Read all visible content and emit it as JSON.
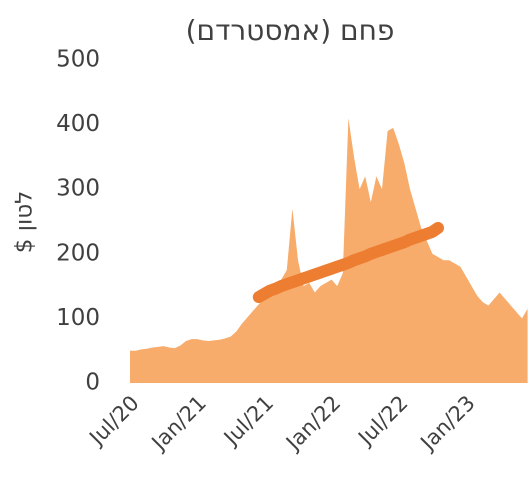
{
  "chart_data": {
    "type": "area",
    "title": "פחם (אמסטרדם)",
    "ylabel": "$ לטון",
    "categories": [
      "Jul/20",
      null,
      null,
      null,
      null,
      null,
      null,
      null,
      null,
      null,
      null,
      null,
      "Jan/21",
      null,
      null,
      null,
      null,
      null,
      null,
      null,
      null,
      null,
      null,
      null,
      "Jul/21",
      null,
      null,
      null,
      null,
      null,
      null,
      null,
      null,
      null,
      null,
      null,
      "Jan/22",
      null,
      null,
      null,
      null,
      null,
      null,
      null,
      null,
      null,
      null,
      null,
      "Jul/22",
      null,
      null,
      null,
      null,
      null,
      null,
      null,
      null,
      null,
      null,
      null,
      "Jan/23",
      null,
      null,
      null,
      null,
      null,
      null,
      null,
      null,
      null,
      null,
      null
    ],
    "series": [
      {
        "color": "#f7ac6c",
        "kind": "area",
        "values": [
          50,
          50,
          52,
          53,
          55,
          56,
          57,
          55,
          54,
          58,
          65,
          68,
          68,
          66,
          65,
          66,
          67,
          69,
          72,
          80,
          92,
          102,
          112,
          122,
          130,
          140,
          150,
          160,
          175,
          270,
          190,
          150,
          155,
          140,
          150,
          155,
          160,
          150,
          170,
          410,
          350,
          300,
          320,
          280,
          320,
          300,
          390,
          395,
          370,
          340,
          300,
          270,
          240,
          220,
          200,
          195,
          190,
          190,
          185,
          180,
          165,
          150,
          135,
          125,
          120,
          130,
          140,
          130,
          120,
          110,
          100,
          115
        ]
      },
      {
        "color": "#ed7d31",
        "kind": "line",
        "values": [
          null,
          null,
          null,
          null,
          null,
          null,
          null,
          null,
          null,
          null,
          null,
          null,
          null,
          null,
          null,
          null,
          null,
          null,
          null,
          null,
          null,
          null,
          null,
          133,
          138,
          143,
          146,
          150,
          153,
          156,
          159,
          162,
          165,
          168,
          171,
          174,
          177,
          180,
          183,
          186,
          190,
          193,
          196,
          200,
          203,
          206,
          209,
          212,
          215,
          218,
          222,
          225,
          228,
          231,
          234,
          240,
          null,
          null,
          null,
          null,
          null,
          null,
          null,
          null,
          null,
          null,
          null,
          null,
          null,
          null,
          null,
          null
        ]
      }
    ],
    "ylim": [
      0,
      500
    ],
    "yticks": [
      0,
      100,
      200,
      300,
      400,
      500
    ],
    "grid": false
  }
}
